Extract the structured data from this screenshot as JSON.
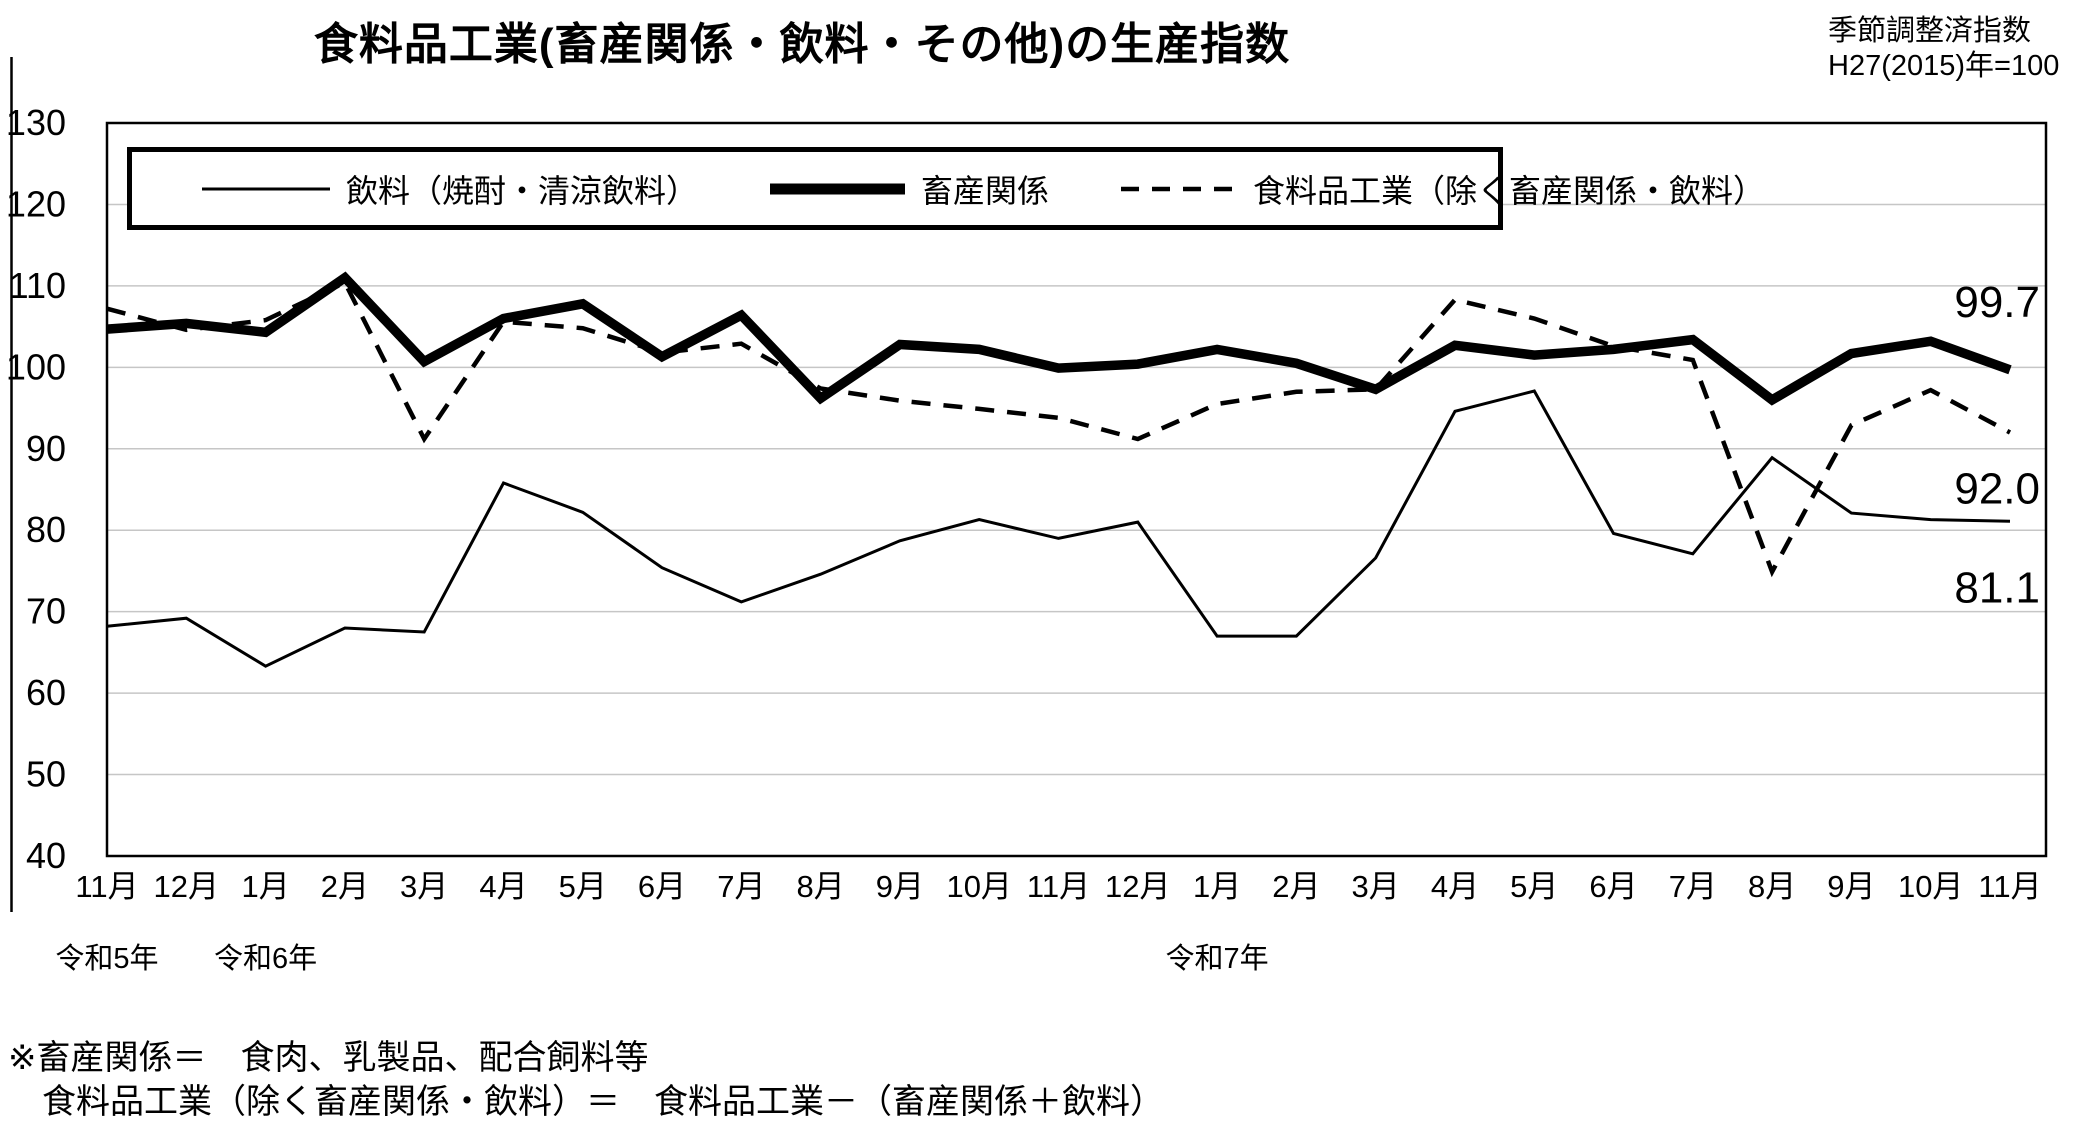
{
  "title": "食料品工業(畜産関係・飲料・その他)の生産指数",
  "subtitle": {
    "line1": "季節調整済指数",
    "line2": "H27(2015)年=100"
  },
  "legend": {
    "items": [
      {
        "label": "飲料（焼酎・清涼飲料）",
        "style": "thin"
      },
      {
        "label": "畜産関係",
        "style": "thick"
      },
      {
        "label": "食料品工業（除く畜産関係・飲料）",
        "style": "dashed"
      }
    ]
  },
  "chart_data": {
    "type": "line",
    "title": "食料品工業(畜産関係・飲料・その他)の生産指数",
    "note": "季節調整済指数 H27(2015)年=100",
    "ylim": [
      40,
      130
    ],
    "ytick_step": 10,
    "grid": true,
    "legend_position": "top",
    "x_labels": [
      "11月",
      "12月",
      "1月",
      "2月",
      "3月",
      "4月",
      "5月",
      "6月",
      "7月",
      "8月",
      "9月",
      "10月",
      "11月",
      "12月",
      "1月",
      "2月",
      "3月",
      "4月",
      "5月",
      "6月",
      "7月",
      "8月",
      "9月",
      "10月",
      "11月"
    ],
    "era_labels": [
      {
        "label": "令和5年",
        "month_index": 0
      },
      {
        "label": "令和6年",
        "month_index": 2
      },
      {
        "label": "令和7年",
        "month_index": 14
      }
    ],
    "series": [
      {
        "name": "飲料（焼酎・清涼飲料）",
        "style": "thin",
        "end_label": "81.1",
        "values": [
          68.2,
          69.2,
          63.3,
          68.0,
          67.5,
          85.8,
          82.2,
          75.4,
          71.2,
          74.6,
          78.7,
          81.3,
          79.0,
          81.0,
          67.0,
          67.0,
          76.6,
          94.6,
          97.1,
          79.6,
          77.1,
          88.9,
          82.1,
          81.3,
          81.1
        ]
      },
      {
        "name": "畜産関係",
        "style": "thick",
        "end_label": "99.7",
        "values": [
          104.7,
          105.4,
          104.3,
          111.0,
          100.7,
          106.0,
          107.8,
          101.3,
          106.4,
          96.2,
          102.8,
          102.2,
          99.9,
          100.4,
          102.2,
          100.5,
          97.3,
          102.7,
          101.5,
          102.2,
          103.4,
          96.0,
          101.7,
          103.2,
          99.7
        ]
      },
      {
        "name": "食料品工業（除く畜産関係・飲料）",
        "style": "dashed",
        "end_label": "92.0",
        "values": [
          107.2,
          104.6,
          105.8,
          110.4,
          91.2,
          105.6,
          104.8,
          101.8,
          102.9,
          97.4,
          95.9,
          94.9,
          93.8,
          91.2,
          95.5,
          97.0,
          97.3,
          108.3,
          106.0,
          102.6,
          100.9,
          74.9,
          92.9,
          97.2,
          92.0
        ]
      }
    ]
  },
  "footnotes": {
    "line1": "※畜産関係＝　食肉、乳製品、配合飼料等",
    "line2": "食料品工業（除く畜産関係・飲料）＝　食料品工業－（畜産関係＋飲料）"
  },
  "colors": {
    "line": "#000000",
    "grid": "#c6c6c6",
    "background": "#ffffff"
  }
}
